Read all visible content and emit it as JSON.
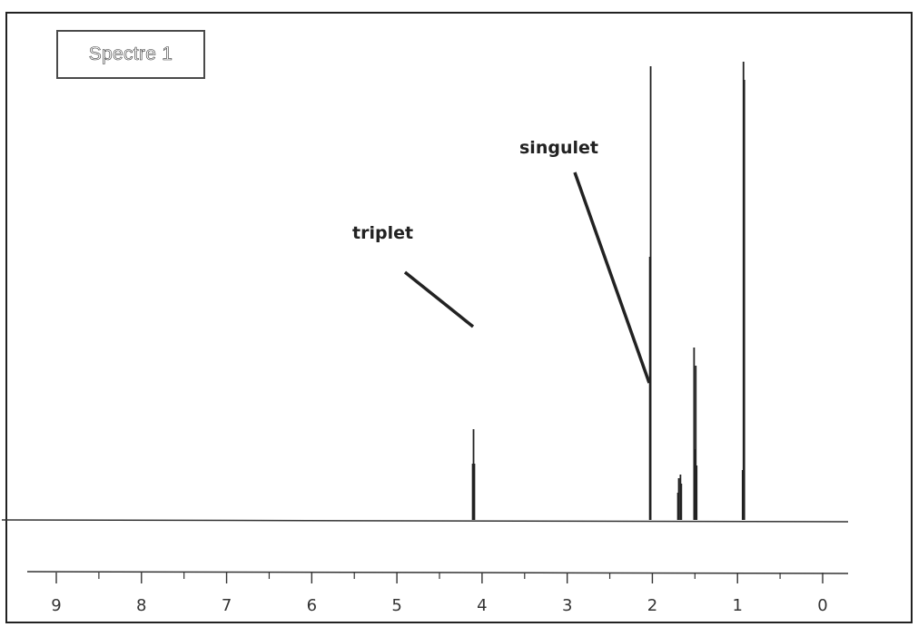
{
  "chart_data": {
    "type": "line",
    "title": "Spectre 1",
    "xlim": [
      9.3,
      -0.3
    ],
    "x_reversed": true,
    "ticks": [
      "9",
      "8",
      "7",
      "6",
      "5",
      "4",
      "3",
      "2",
      "1",
      "0"
    ],
    "grid": false,
    "peaks": [
      {
        "x": 4.1,
        "y": 100,
        "label": "triplet"
      },
      {
        "x": 4.09,
        "y": 62
      },
      {
        "x": 4.11,
        "y": 62
      },
      {
        "x": 2.03,
        "y": 290,
        "label": "singulet"
      },
      {
        "x": 2.02,
        "y": 500
      },
      {
        "x": 1.7,
        "y": 30
      },
      {
        "x": 1.69,
        "y": 46
      },
      {
        "x": 1.67,
        "y": 50
      },
      {
        "x": 1.66,
        "y": 40
      },
      {
        "x": 1.51,
        "y": 190
      },
      {
        "x": 1.5,
        "y": 78
      },
      {
        "x": 1.49,
        "y": 170
      },
      {
        "x": 1.48,
        "y": 60
      },
      {
        "x": 0.93,
        "y": 505
      },
      {
        "x": 0.92,
        "y": 485
      },
      {
        "x": 0.94,
        "y": 55
      }
    ],
    "annotations": [
      {
        "text": "triplet",
        "x": 4.1
      },
      {
        "text": "singulet",
        "x": 2.02
      }
    ]
  }
}
